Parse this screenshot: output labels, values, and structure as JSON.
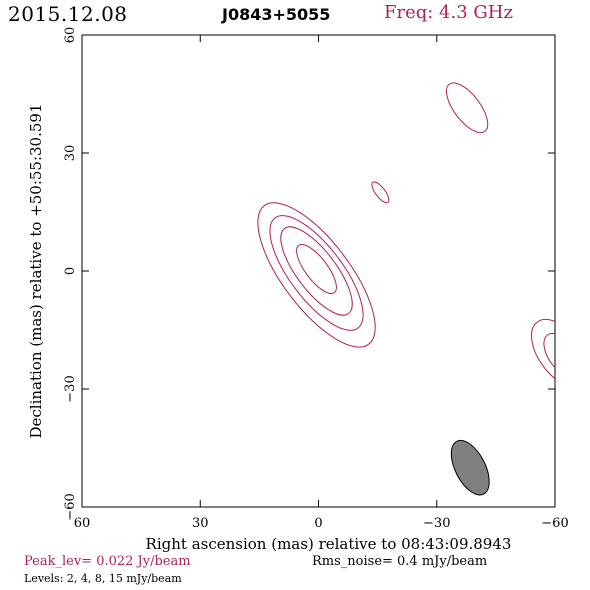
{
  "header": {
    "date": "2015.12.08",
    "source": "J0843+5055",
    "frequency": "Freq: 4.3 GHz"
  },
  "footer": {
    "peak": "Peak_lev=  0.022 Jy/beam",
    "rms": "Rms_noise=   0.4 mJy/beam",
    "levels": "Levels:   2,    4,    8,   15 mJy/beam"
  },
  "colors": {
    "contour": "#b0224e",
    "beam_fill": "#808080"
  },
  "chart_data": {
    "type": "contour",
    "title": "J0843+5055",
    "xlabel": "Right ascension (mas) relative to 08:43:09.8943",
    "ylabel": "Declination (mas) relative to +50:55:30.591",
    "xlim": [
      60,
      -60
    ],
    "ylim": [
      -60,
      60
    ],
    "x_ticks": [
      60,
      30,
      0,
      -30,
      -60
    ],
    "y_ticks": [
      -60,
      -30,
      0,
      30,
      60
    ],
    "x_tick_labels": [
      "60",
      "30",
      "0",
      "−30",
      "−60"
    ],
    "y_tick_labels": [
      "−60",
      "−30",
      "0",
      "30",
      "60"
    ],
    "levels_mjy_per_beam": [
      2,
      4,
      8,
      15
    ],
    "peak_jy_per_beam": 0.022,
    "rms_noise_mjy_per_beam": 0.4,
    "contours": [
      {
        "component": "core",
        "level": 2,
        "cx": 0.5,
        "cy": -1,
        "major": 22,
        "minor": 8.5,
        "pa": 37
      },
      {
        "component": "core",
        "level": 4,
        "cx": 0.5,
        "cy": -0.5,
        "major": 17.5,
        "minor": 6.7,
        "pa": 37
      },
      {
        "component": "core",
        "level": 8,
        "cx": 0.5,
        "cy": 0,
        "major": 13.5,
        "minor": 5,
        "pa": 37
      },
      {
        "component": "core",
        "level": 15,
        "cx": 0.5,
        "cy": 0.5,
        "major": 7.5,
        "minor": 2.8,
        "pa": 37
      },
      {
        "component": "jet",
        "level": 2,
        "cx": -15.7,
        "cy": 20,
        "major": 3.2,
        "minor": 1.2,
        "pa": 37
      },
      {
        "component": "jet",
        "level": 2,
        "cx": -37.7,
        "cy": 41.5,
        "major": 7.5,
        "minor": 3.3,
        "pa": 37
      },
      {
        "component": "edge",
        "level": 2,
        "cx": -61.5,
        "cy": -21,
        "major": 10,
        "minor": 5.5,
        "pa": 37
      },
      {
        "component": "edge",
        "level": 4,
        "cx": -62,
        "cy": -21.5,
        "major": 6.5,
        "minor": 3.5,
        "pa": 37
      }
    ],
    "beam": {
      "cx": -38.5,
      "cy": -50,
      "major": 7.5,
      "minor": 3.8,
      "pa": 27
    }
  }
}
